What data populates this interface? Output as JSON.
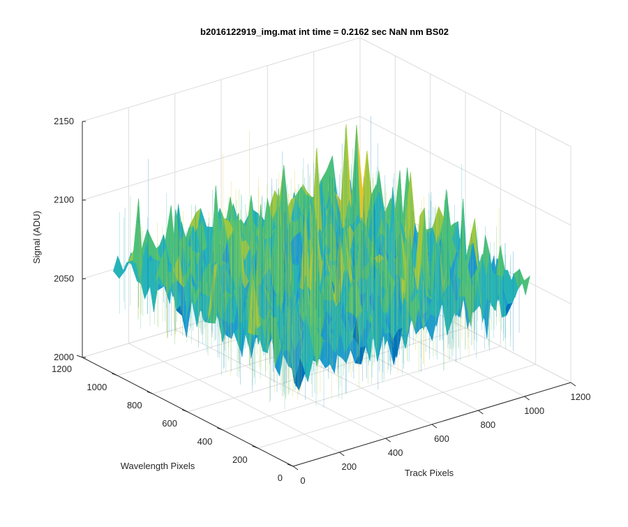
{
  "chart_data": {
    "type": "surface",
    "title": "b2016122919_img.mat int time = 0.2162 sec  NaN nm BS02",
    "xlabel": "Track Pixels",
    "ylabel": "Wavelength Pixels",
    "zlabel": "Signal (ADU)",
    "xlim": [
      0,
      1200
    ],
    "ylim": [
      0,
      1200
    ],
    "zlim": [
      2000,
      2150
    ],
    "x_ticks": [
      "0",
      "200",
      "400",
      "600",
      "800",
      "1000",
      "1200"
    ],
    "y_ticks": [
      "0",
      "200",
      "400",
      "600",
      "800",
      "1000",
      "1200"
    ],
    "z_ticks": [
      "2000",
      "2050",
      "2100",
      "2150"
    ],
    "grid": true,
    "colormap": [
      "#0072bd",
      "#1b9ad6",
      "#26b3b8",
      "#4cc07a",
      "#9fc840",
      "#e0c62c"
    ],
    "surface_extent": {
      "x": [
        0,
        1024
      ],
      "y": [
        0,
        1024
      ]
    },
    "signal_range": [
      2030,
      2130
    ],
    "typical_signal": 2065
  }
}
